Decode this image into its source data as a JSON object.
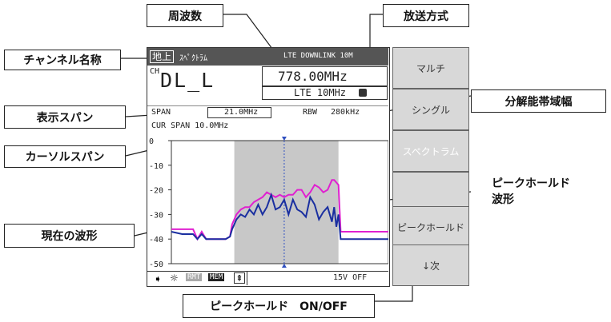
{
  "callouts": {
    "frequency": "周波数",
    "broadcast_method": "放送方式",
    "channel_name": "チャンネル名称",
    "resolution_bandwidth": "分解能帯域幅",
    "display_span": "表示スパン",
    "cursor_span": "カーソルスパン",
    "current_waveform": "現在の波形",
    "peak_hold_waveform": "ピークホールド\n波形",
    "peak_hold_onoff": "ピークホールド　ON/OFF"
  },
  "screen": {
    "mode_tag": "地上",
    "mode_name": "ｽﾍﾟｸﾄﾗﾑ",
    "broadcast_header": "LTE DOWNLINK 10M",
    "ch_label": "CH",
    "channel": "DL_L",
    "frequency": "778.00MHz",
    "broadcast_short": "LTE 10MHz",
    "span_label": "SPAN",
    "span_value": "21.0MHz",
    "rbw_label": "RBW",
    "rbw_value": "280kHz",
    "cur_span": "CUR SPAN 10.0MHz",
    "status_rmt": "RMT",
    "status_mem": "MEM",
    "voltage": "15V OFF"
  },
  "buttons": [
    "マルチ",
    "シングル",
    "スペクトラム",
    "",
    "ピークホールド",
    "↓次"
  ],
  "chart_data": {
    "type": "line",
    "ylim": [
      -50,
      0
    ],
    "yticks": [
      0,
      -10,
      -20,
      -30,
      -40,
      -50
    ],
    "xlim": [
      0,
      100
    ],
    "shaded_band": [
      29,
      77
    ],
    "cursor_x": 52,
    "series": [
      {
        "color": "#e020d0",
        "x": [
          0,
          5,
          10,
          12,
          14,
          16,
          20,
          25,
          27,
          28,
          30,
          32,
          34,
          36,
          38,
          40,
          42,
          44,
          46,
          48,
          50,
          52,
          54,
          56,
          58,
          60,
          62,
          64,
          66,
          68,
          70,
          72,
          74,
          75,
          76,
          77,
          78,
          85,
          92,
          100
        ],
        "values": [
          -36,
          -36,
          -36,
          -40,
          -37,
          -40,
          -40,
          -40,
          -39,
          -34,
          -30,
          -28,
          -27,
          -27,
          -25,
          -24,
          -23,
          -21,
          -22,
          -23,
          -22,
          -23,
          -22,
          -22,
          -20,
          -20,
          -23,
          -21,
          -18,
          -19,
          -21,
          -20,
          -16,
          -16,
          -17,
          -18,
          -37,
          -37,
          -37,
          -37
        ]
      },
      {
        "color": "#1a2fa0",
        "x": [
          0,
          5,
          10,
          12,
          14,
          16,
          20,
          25,
          27,
          28,
          30,
          32,
          34,
          36,
          38,
          40,
          42,
          44,
          46,
          48,
          50,
          52,
          54,
          56,
          58,
          60,
          62,
          64,
          66,
          68,
          70,
          72,
          74,
          75,
          76,
          77,
          78,
          85,
          92,
          100
        ],
        "values": [
          -37,
          -38,
          -38,
          -40,
          -38,
          -40,
          -40,
          -40,
          -39,
          -36,
          -32,
          -30,
          -31,
          -28,
          -30,
          -26,
          -30,
          -27,
          -22,
          -28,
          -27,
          -24,
          -30,
          -24,
          -28,
          -29,
          -31,
          -23,
          -26,
          -32,
          -29,
          -27,
          -33,
          -27,
          -35,
          -30,
          -40,
          -40,
          -40,
          -40
        ]
      }
    ]
  }
}
